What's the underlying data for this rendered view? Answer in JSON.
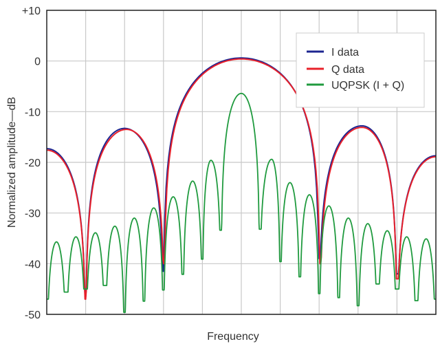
{
  "chart_data": {
    "type": "line",
    "title": "",
    "xlabel": "Frequency",
    "ylabel": "Normalized amplitude—dB",
    "xlim": [
      0,
      10
    ],
    "ylim": [
      -50,
      10
    ],
    "yticks": [
      10,
      0,
      -10,
      -20,
      -30,
      -40,
      -50
    ],
    "ytick_labels": [
      "+10",
      "0",
      "-10",
      "-20",
      "-30",
      "-40",
      "-50"
    ],
    "x_gridlines": [
      1,
      2,
      3,
      4,
      5,
      6,
      7,
      8,
      9
    ],
    "x_tick_labels": "none",
    "grid": true,
    "legend_placement": "top-right",
    "series": [
      {
        "name": "I data",
        "color": "#1c2590",
        "key_points": {
          "x": [
            0,
            1,
            2,
            3,
            5,
            7,
            8.1,
            9,
            10
          ],
          "y": [
            -17.3,
            -46.5,
            -13.3,
            -41.5,
            0.6,
            -39,
            -12.8,
            -42,
            -18.7
          ],
          "kind": [
            "peak",
            "null",
            "peak",
            "null",
            "peak",
            "null",
            "peak",
            "null",
            "peak"
          ]
        }
      },
      {
        "name": "Q data",
        "color": "#e8202a",
        "key_points": {
          "x": [
            0,
            1,
            2.05,
            3.02,
            5,
            7.02,
            8.1,
            9,
            10
          ],
          "y": [
            -17.6,
            -47,
            -13.5,
            -40,
            0.4,
            -40,
            -13.1,
            -43,
            -18.9
          ],
          "kind": [
            "peak",
            "null",
            "peak",
            "null",
            "peak",
            "null",
            "peak",
            "null",
            "peak"
          ]
        }
      },
      {
        "name": "UQPSK (I + Q)",
        "color": "#1f9a3e",
        "key_points": {
          "x": [
            0,
            0.25,
            0.5,
            0.75,
            1,
            1.25,
            1.5,
            1.75,
            2,
            2.25,
            2.5,
            2.75,
            3,
            3.25,
            3.5,
            3.75,
            4,
            4.22,
            4.48,
            5,
            5.47,
            5.78,
            6,
            6.25,
            6.5,
            6.75,
            7,
            7.25,
            7.5,
            7.75,
            8,
            8.25,
            8.5,
            8.75,
            9,
            9.25,
            9.5,
            9.75,
            10
          ],
          "y": [
            -47,
            -35.7,
            -45.6,
            -34.7,
            -45,
            -33.9,
            -44.3,
            -32.6,
            -49.6,
            -31,
            -47.4,
            -29,
            -45.2,
            -26.8,
            -42.1,
            -23.7,
            -39.1,
            -19.6,
            -33.4,
            -6.4,
            -33.2,
            -19.4,
            -39.6,
            -24,
            -42.6,
            -26.4,
            -45.9,
            -28.6,
            -46.7,
            -31,
            -48.3,
            -32.1,
            -44,
            -33.5,
            -45,
            -34.7,
            -47.3,
            -35.1,
            -47
          ],
          "kind": [
            "null",
            "peak",
            "null",
            "peak",
            "null",
            "peak",
            "null",
            "peak",
            "null",
            "peak",
            "null",
            "peak",
            "null",
            "peak",
            "null",
            "peak",
            "null",
            "peak",
            "null",
            "peak",
            "null",
            "peak",
            "null",
            "peak",
            "null",
            "peak",
            "null",
            "peak",
            "null",
            "peak",
            "null",
            "peak",
            "null",
            "peak",
            "null",
            "peak",
            "null",
            "peak",
            "null"
          ]
        }
      }
    ]
  }
}
